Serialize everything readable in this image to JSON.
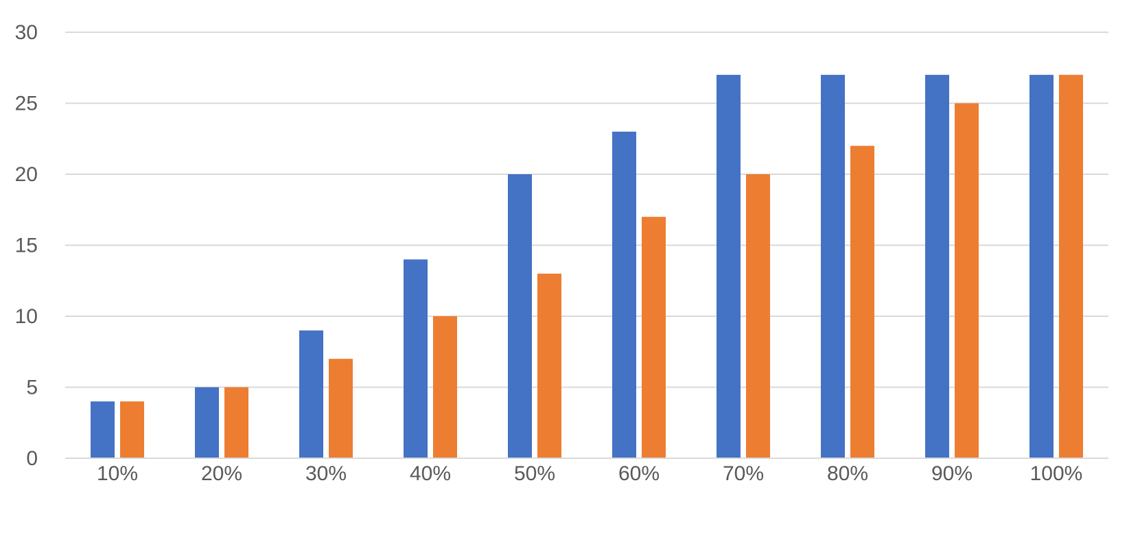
{
  "chart_data": {
    "type": "bar",
    "categories": [
      "10%",
      "20%",
      "30%",
      "40%",
      "50%",
      "60%",
      "70%",
      "80%",
      "90%",
      "100%"
    ],
    "series": [
      {
        "color": "#4472c4",
        "values": [
          4,
          5,
          9,
          14,
          20,
          23,
          27,
          27,
          27,
          27
        ]
      },
      {
        "color": "#ed7d31",
        "values": [
          4,
          5,
          7,
          10,
          13,
          17,
          20,
          22,
          25,
          27
        ]
      }
    ],
    "title": "",
    "xlabel": "",
    "ylabel": "",
    "ylim": [
      0,
      30
    ],
    "yticks": [
      0,
      5,
      10,
      15,
      20,
      25,
      30
    ],
    "grid": true,
    "legend": "none"
  }
}
